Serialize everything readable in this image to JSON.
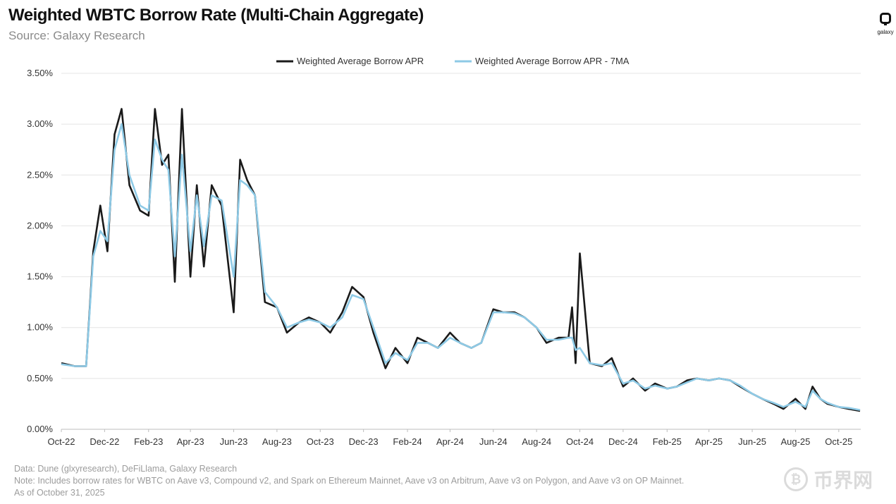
{
  "header": {
    "title": "Weighted WBTC Borrow Rate (Multi-Chain Aggregate)",
    "subtitle": "Source: Galaxy Research"
  },
  "logo": {
    "text": "galaxy"
  },
  "footer": {
    "line1": "Data: Dune (glxyresearch), DeFiLlama, Galaxy Research",
    "line2": "Note: Includes borrow rates for WBTC on Aave v3, Compound v2, and Spark on Ethereum Mainnet, Aave v3 on Arbitrum, Aave v3 on Polygon, and Aave v3 on OP Mainnet.",
    "line3": "As of October 31, 2025"
  },
  "watermark": {
    "text": "币界网",
    "icon": "bitcoin-circle-icon"
  },
  "colors": {
    "apr": "#1a1a1a",
    "ma": "#8ecae6",
    "grid": "#e4e4e4",
    "axis": "#bdbdbd",
    "tick": "#333333"
  },
  "chart_data": {
    "type": "line",
    "title": "Weighted WBTC Borrow Rate (Multi-Chain Aggregate)",
    "xlabel": "",
    "ylabel": "",
    "ylim": [
      0,
      3.5
    ],
    "y_ticks": [
      "0.00%",
      "0.50%",
      "1.00%",
      "1.50%",
      "2.00%",
      "2.50%",
      "3.00%",
      "3.50%"
    ],
    "x_ticks": [
      "Oct-22",
      "Dec-22",
      "Feb-23",
      "Apr-23",
      "Jun-23",
      "Aug-23",
      "Oct-23",
      "Dec-23",
      "Feb-24",
      "Apr-24",
      "Jun-24",
      "Aug-24",
      "Oct-24",
      "Dec-24",
      "Feb-25",
      "Apr-25",
      "Jun-25",
      "Aug-25",
      "Oct-25"
    ],
    "grid": true,
    "legend_position": "top",
    "x": [
      "2022-10-01",
      "2022-10-20",
      "2022-11-05",
      "2022-11-15",
      "2022-11-25",
      "2022-12-05",
      "2022-12-15",
      "2022-12-25",
      "2023-01-05",
      "2023-01-20",
      "2023-02-01",
      "2023-02-10",
      "2023-02-20",
      "2023-03-01",
      "2023-03-10",
      "2023-03-20",
      "2023-04-01",
      "2023-04-10",
      "2023-04-20",
      "2023-05-01",
      "2023-05-15",
      "2023-06-01",
      "2023-06-10",
      "2023-06-20",
      "2023-07-01",
      "2023-07-15",
      "2023-08-01",
      "2023-08-15",
      "2023-09-01",
      "2023-09-15",
      "2023-10-01",
      "2023-10-15",
      "2023-11-01",
      "2023-11-15",
      "2023-12-01",
      "2023-12-15",
      "2024-01-01",
      "2024-01-15",
      "2024-02-01",
      "2024-02-15",
      "2024-03-01",
      "2024-03-15",
      "2024-04-01",
      "2024-04-15",
      "2024-05-01",
      "2024-05-15",
      "2024-06-01",
      "2024-06-15",
      "2024-07-01",
      "2024-07-15",
      "2024-08-01",
      "2024-08-15",
      "2024-09-01",
      "2024-09-15",
      "2024-09-20",
      "2024-09-25",
      "2024-10-01",
      "2024-10-15",
      "2024-11-01",
      "2024-11-15",
      "2024-12-01",
      "2024-12-15",
      "2025-01-01",
      "2025-01-15",
      "2025-02-01",
      "2025-02-15",
      "2025-03-01",
      "2025-03-15",
      "2025-04-01",
      "2025-04-15",
      "2025-05-01",
      "2025-05-15",
      "2025-06-01",
      "2025-06-15",
      "2025-07-01",
      "2025-07-15",
      "2025-08-01",
      "2025-08-15",
      "2025-08-25",
      "2025-09-05",
      "2025-09-15",
      "2025-10-01",
      "2025-10-15",
      "2025-10-31"
    ],
    "series": [
      {
        "name": "Weighted Average Borrow APR",
        "color": "#1a1a1a",
        "values": [
          0.65,
          0.62,
          0.62,
          1.75,
          2.2,
          1.75,
          2.9,
          3.15,
          2.4,
          2.15,
          2.1,
          3.15,
          2.6,
          2.7,
          1.45,
          3.15,
          1.5,
          2.4,
          1.6,
          2.4,
          2.2,
          1.15,
          2.65,
          2.45,
          2.3,
          1.25,
          1.2,
          0.95,
          1.05,
          1.1,
          1.05,
          0.95,
          1.15,
          1.4,
          1.3,
          0.95,
          0.6,
          0.8,
          0.65,
          0.9,
          0.85,
          0.8,
          0.95,
          0.85,
          0.8,
          0.85,
          1.18,
          1.15,
          1.15,
          1.1,
          1.0,
          0.85,
          0.9,
          0.9,
          1.2,
          0.65,
          1.73,
          0.65,
          0.62,
          0.7,
          0.42,
          0.5,
          0.38,
          0.45,
          0.4,
          0.42,
          0.48,
          0.5,
          0.48,
          0.5,
          0.48,
          0.42,
          0.35,
          0.3,
          0.25,
          0.2,
          0.3,
          0.2,
          0.42,
          0.3,
          0.25,
          0.22,
          0.2,
          0.18
        ]
      },
      {
        "name": "Weighted Average Borrow APR - 7MA",
        "color": "#8ecae6",
        "values": [
          0.64,
          0.62,
          0.62,
          1.7,
          1.95,
          1.85,
          2.75,
          3.0,
          2.5,
          2.2,
          2.15,
          2.85,
          2.65,
          2.55,
          1.7,
          2.7,
          1.75,
          2.3,
          1.8,
          2.3,
          2.25,
          1.5,
          2.45,
          2.4,
          2.3,
          1.35,
          1.2,
          1.0,
          1.05,
          1.08,
          1.05,
          1.0,
          1.1,
          1.32,
          1.28,
          1.0,
          0.65,
          0.75,
          0.68,
          0.85,
          0.85,
          0.8,
          0.9,
          0.85,
          0.8,
          0.85,
          1.15,
          1.15,
          1.14,
          1.1,
          1.0,
          0.88,
          0.88,
          0.9,
          0.9,
          0.78,
          0.8,
          0.65,
          0.63,
          0.65,
          0.45,
          0.48,
          0.4,
          0.43,
          0.4,
          0.42,
          0.46,
          0.5,
          0.48,
          0.5,
          0.48,
          0.43,
          0.35,
          0.3,
          0.26,
          0.22,
          0.27,
          0.22,
          0.38,
          0.3,
          0.26,
          0.22,
          0.21,
          0.19
        ]
      }
    ]
  }
}
